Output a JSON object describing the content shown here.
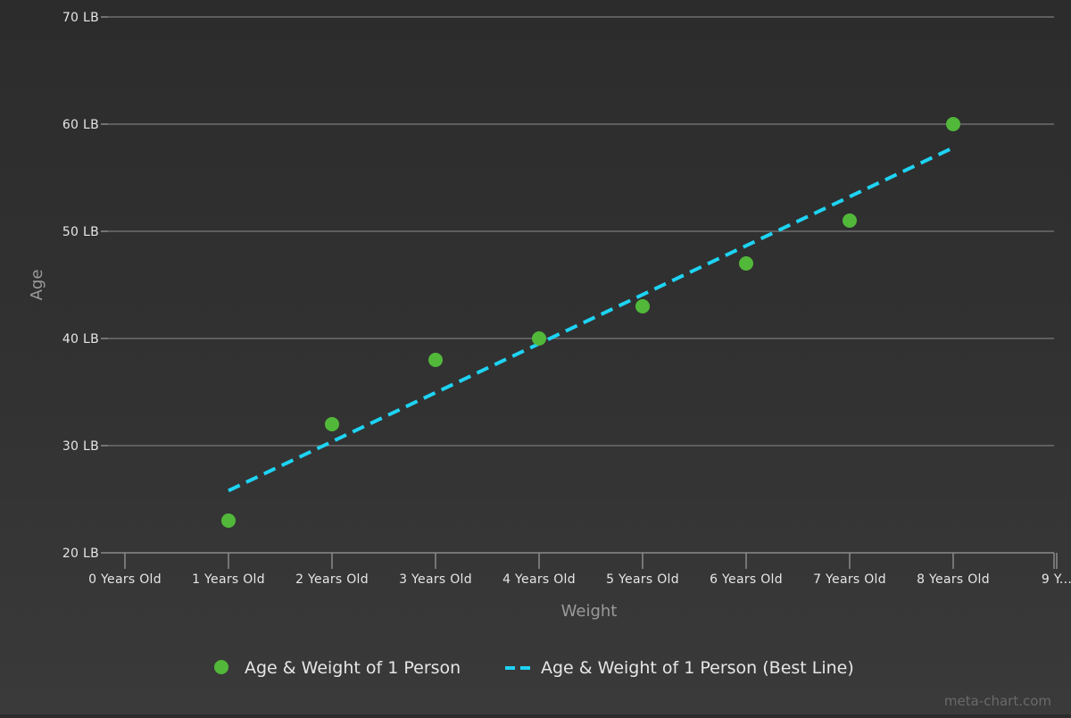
{
  "chart_data": {
    "type": "scatter",
    "title": "",
    "xlabel": "Weight",
    "ylabel": "Age",
    "xlim": [
      0,
      9
    ],
    "ylim": [
      20,
      70
    ],
    "x_tick_values": [
      0,
      1,
      2,
      3,
      4,
      5,
      6,
      7,
      8,
      9
    ],
    "x_tick_labels": [
      "0 Years Old",
      "1 Years Old",
      "2 Years Old",
      "3 Years Old",
      "4 Years Old",
      "5 Years Old",
      "6 Years Old",
      "7 Years Old",
      "8 Years Old",
      "9 Y..."
    ],
    "y_tick_values": [
      20,
      30,
      40,
      50,
      60,
      70
    ],
    "y_tick_labels": [
      "20 LB",
      "30 LB",
      "40 LB",
      "50 LB",
      "60 LB",
      "70 LB"
    ],
    "grid": true,
    "legend_position": "bottom-center",
    "series": [
      {
        "name": "Age & Weight of 1 Person",
        "kind": "scatter",
        "color": "#52b83a",
        "points": [
          {
            "x": 1,
            "y": 23
          },
          {
            "x": 2,
            "y": 32
          },
          {
            "x": 3,
            "y": 38
          },
          {
            "x": 4,
            "y": 40
          },
          {
            "x": 5,
            "y": 43
          },
          {
            "x": 6,
            "y": 47
          },
          {
            "x": 7,
            "y": 51
          },
          {
            "x": 8,
            "y": 60
          }
        ]
      },
      {
        "name": "Age & Weight of 1 Person (Best Line)",
        "kind": "line",
        "style": "dashed",
        "color": "#1ed3f3",
        "points": [
          {
            "x": 1,
            "y": 25.8
          },
          {
            "x": 8,
            "y": 57.8
          }
        ]
      }
    ],
    "credit": "meta-chart.com"
  }
}
